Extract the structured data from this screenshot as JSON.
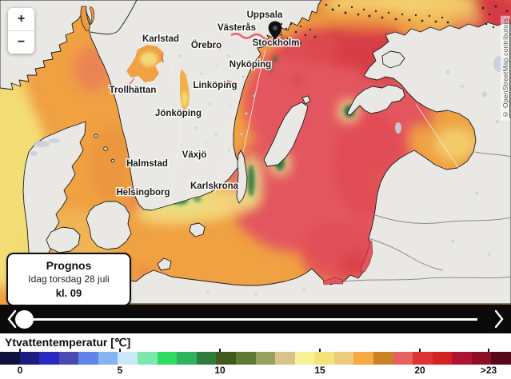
{
  "map": {
    "cities": [
      "Uppsala",
      "Västerås",
      "Stockholm",
      "Nyköping",
      "Karlstad",
      "Örebro",
      "Trollhättan",
      "Linköping",
      "Jönköping",
      "Växjö",
      "Halmstad",
      "Helsingborg",
      "Karlskrona"
    ],
    "attribution": "© OpenStreetMap contributors"
  },
  "zoom_control": {
    "zoom_in": "+",
    "zoom_out": "−"
  },
  "forecast_popup": {
    "title": "Prognos",
    "date": "Idag torsdag 28 juli",
    "time": "kl. 09"
  },
  "legend": {
    "title": "Ytvattentemperatur [℃]",
    "ticks": [
      "0",
      "5",
      "10",
      "15",
      "20",
      ">23"
    ],
    "segment_colors": [
      "#10103d",
      "#1b1b80",
      "#2a2ac0",
      "#4a4ab0",
      "#6282ea",
      "#84b4f2",
      "#c9e9f8",
      "#7ce6ae",
      "#2fdb60",
      "#2fb35e",
      "#2f7d3e",
      "#41591d",
      "#5f7a33",
      "#98a15b",
      "#dac388",
      "#f7f395",
      "#f4e279",
      "#eecb7b",
      "#f5a93e",
      "#cd8126",
      "#e86060",
      "#dd3333",
      "#d42222",
      "#ad1430",
      "#8c0f26",
      "#55091a"
    ]
  },
  "colors": {
    "sea_warm_orange": "#f0a142",
    "sea_hot_red": "#e4575e",
    "sea_very_hot_red": "#d63a45",
    "sea_yellow": "#f3dd74",
    "sea_cool_green": "#2e7d3e",
    "land": "#eae8e4",
    "timeline_bg": "#0a0a0a"
  }
}
